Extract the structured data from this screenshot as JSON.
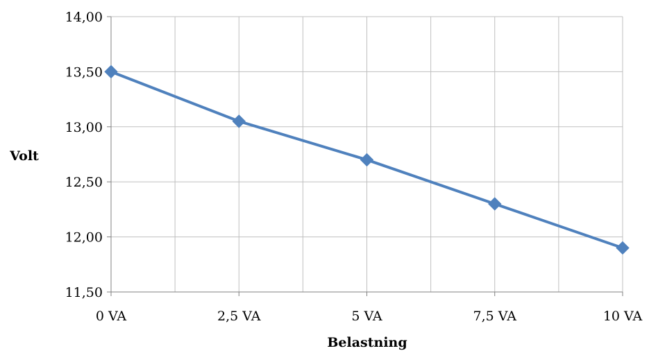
{
  "chart_data": {
    "type": "line",
    "categories": [
      "0 VA",
      "2,5 VA",
      "5 VA",
      "7,5 VA",
      "10 VA"
    ],
    "series": [
      {
        "values": [
          13.5,
          13.05,
          12.7,
          12.3,
          11.9
        ]
      }
    ],
    "ylim": [
      11.5,
      14.0
    ],
    "y_ticks": [
      "11,50",
      "12,00",
      "12,50",
      "13,00",
      "13,50",
      "14,00"
    ],
    "xlabel": "Belastning",
    "ylabel": "Volt",
    "grid": true,
    "colors": {
      "series": "#4F81BD",
      "grid": "#BFBFBF",
      "axis": "#808080"
    }
  }
}
